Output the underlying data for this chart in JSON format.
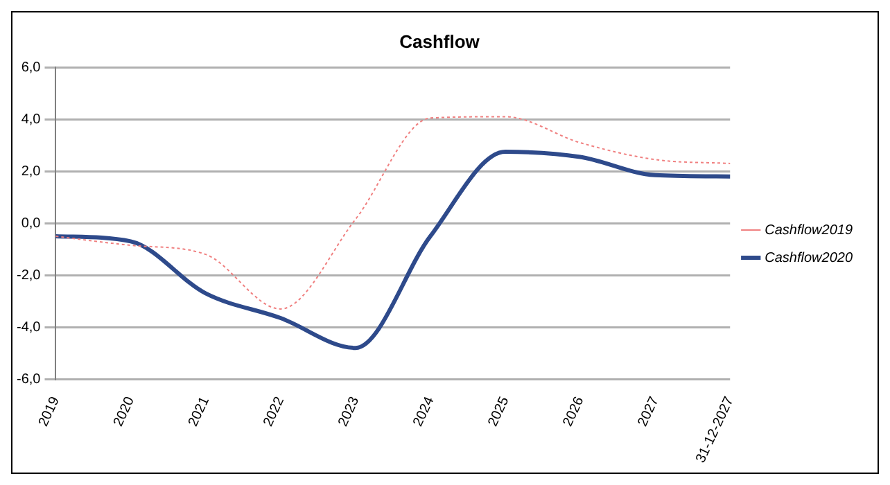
{
  "chart_data": {
    "type": "line",
    "title": "Cashflow",
    "categories": [
      "2019",
      "2020",
      "2021",
      "2022",
      "2023",
      "2024",
      "2025",
      "2026",
      "2027",
      "31-12-2027"
    ],
    "series": [
      {
        "name": "Cashflow2020",
        "color": "#2e4a8b",
        "line_style": "solid",
        "values": [
          -0.5,
          -0.7,
          -2.7,
          -3.65,
          -4.8,
          -0.5,
          2.75,
          2.55,
          1.85,
          1.8
        ]
      },
      {
        "name": "Cashflow2019",
        "color": "#f08080",
        "line_style": "dotted",
        "values": [
          -0.5,
          -0.85,
          -1.2,
          -3.3,
          0.15,
          4.05,
          4.1,
          3.1,
          2.45,
          2.3
        ]
      }
    ],
    "ylim": [
      -6,
      6
    ],
    "yticks": [
      {
        "value": -6,
        "label": "-6,0"
      },
      {
        "value": -4,
        "label": "-4,0"
      },
      {
        "value": -2,
        "label": "-2,0"
      },
      {
        "value": 0,
        "label": "0,0"
      },
      {
        "value": 2,
        "label": "2,0"
      },
      {
        "value": 4,
        "label": "4,0"
      },
      {
        "value": 6,
        "label": "6,0"
      }
    ],
    "grid": "y",
    "legend": "right",
    "marker": "none"
  }
}
